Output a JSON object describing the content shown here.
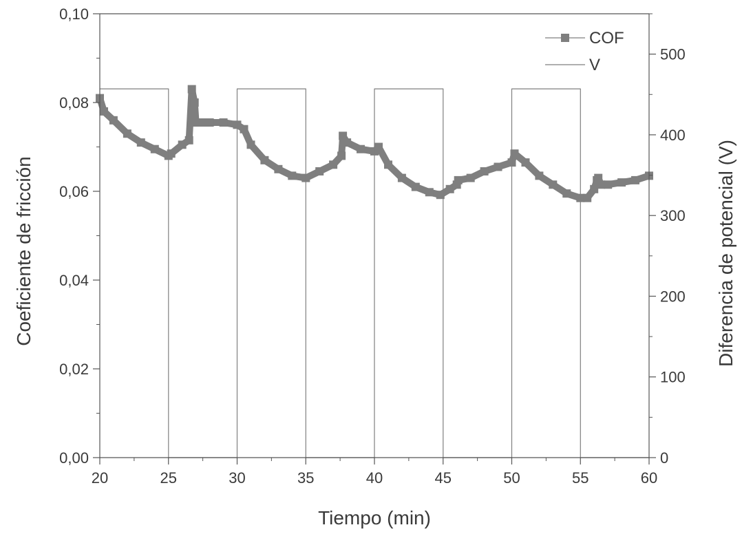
{
  "chart_data": {
    "type": "line",
    "title": "",
    "xlabel": "Tiempo (min)",
    "ylabel": "Coeficiente de fricción",
    "y2label": "Diferencia de potencial (V)",
    "xlim": [
      20,
      60
    ],
    "ylim": [
      0,
      0.1
    ],
    "y2lim": [
      0,
      550
    ],
    "x_ticks": [
      "20",
      "25",
      "30",
      "35",
      "40",
      "45",
      "50",
      "55",
      "60"
    ],
    "y_ticks": [
      "0,00",
      "0,02",
      "0,04",
      "0,06",
      "0,08",
      "0,10"
    ],
    "y2_ticks": [
      "0",
      "100",
      "200",
      "300",
      "400",
      "500"
    ],
    "grid": false,
    "legend_position": "top-right",
    "series": [
      {
        "name": "COF",
        "axis": "left",
        "color": "#7f7f7f",
        "marker": "square",
        "x": [
          20.0,
          20.3,
          21.0,
          22.0,
          23.0,
          24.0,
          25.0,
          25.2,
          26.0,
          26.5,
          26.7,
          26.9,
          27.0,
          27.5,
          28.0,
          29.0,
          30.0,
          30.5,
          31.0,
          32.0,
          33.0,
          34.0,
          35.0,
          36.0,
          37.0,
          37.6,
          37.7,
          38.0,
          39.0,
          40.0,
          40.3,
          41.0,
          42.0,
          43.0,
          44.0,
          44.8,
          45.5,
          46.0,
          46.1,
          47.0,
          48.0,
          49.0,
          50.0,
          50.2,
          51.0,
          52.0,
          53.0,
          54.0,
          55.0,
          55.5,
          56.0,
          56.2,
          56.3,
          56.5,
          57.0,
          58.0,
          59.0,
          60.0
        ],
        "y": [
          0.081,
          0.078,
          0.076,
          0.073,
          0.071,
          0.0695,
          0.068,
          0.0685,
          0.0705,
          0.0715,
          0.083,
          0.08,
          0.0755,
          0.0755,
          0.0755,
          0.0755,
          0.075,
          0.074,
          0.0705,
          0.067,
          0.065,
          0.0635,
          0.063,
          0.0645,
          0.066,
          0.068,
          0.0725,
          0.071,
          0.0695,
          0.069,
          0.07,
          0.066,
          0.063,
          0.061,
          0.0598,
          0.0592,
          0.0605,
          0.0615,
          0.0625,
          0.063,
          0.0645,
          0.0655,
          0.0665,
          0.0685,
          0.0665,
          0.0635,
          0.0615,
          0.0595,
          0.0585,
          0.0585,
          0.0605,
          0.0625,
          0.063,
          0.0615,
          0.0615,
          0.062,
          0.0625,
          0.0635
        ]
      },
      {
        "name": "V",
        "axis": "right",
        "color": "#7f7f7f",
        "marker": "none",
        "x": [
          20,
          25,
          25,
          30,
          30,
          35,
          35,
          40,
          40,
          45,
          45,
          50,
          50,
          55,
          55,
          60
        ],
        "y": [
          457,
          457,
          0,
          0,
          457,
          457,
          0,
          0,
          457,
          457,
          0,
          0,
          457,
          457,
          0,
          0
        ]
      }
    ]
  }
}
